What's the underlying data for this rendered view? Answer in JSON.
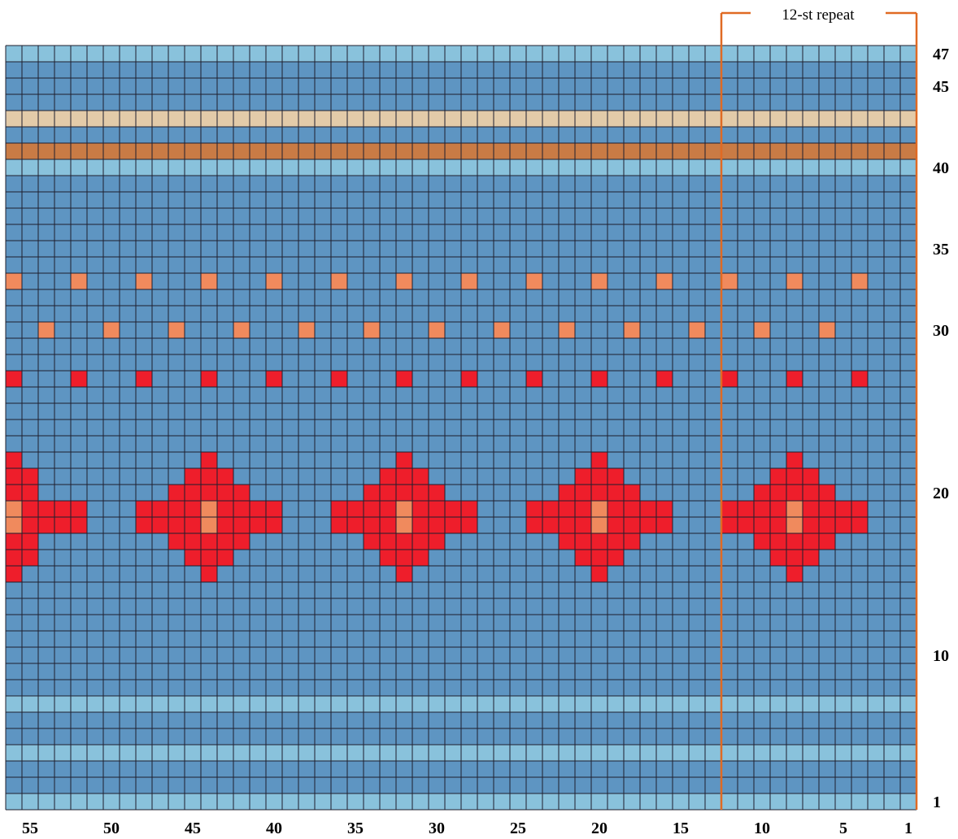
{
  "chart_data": {
    "type": "knitting-chart",
    "stitches": 56,
    "rows": 47,
    "repeat_label": "12-st repeat",
    "repeat_stitches": [
      1,
      12
    ],
    "palette": {
      "B": "#5e95c2",
      "L": "#89c2dc",
      "T": "#e3cba9",
      "O": "#c97b45",
      "P": "#f08a5d",
      "R": "#ee1e2b"
    },
    "grid_color": "#1f1f2e",
    "repeat_line_color": "#e06a23",
    "row_colors": {
      "1": "L",
      "2": "B",
      "3": "B",
      "4": "L",
      "5": "B",
      "6": "B",
      "7": "L",
      "40": "L",
      "41": "O",
      "42": "B",
      "43": "T",
      "44": "B",
      "45": "B",
      "46": "B",
      "47": "L"
    },
    "default_color": "B",
    "motif_cells": [
      {
        "row": 33,
        "stitches": [
          56,
          52,
          48,
          44,
          40,
          36,
          32,
          28,
          24,
          20,
          16,
          12,
          8,
          4
        ],
        "color": "P"
      },
      {
        "row": 30,
        "stitches": [
          54,
          50,
          46,
          42,
          38,
          34,
          30,
          26,
          22,
          18,
          14,
          10,
          6
        ],
        "color": "P"
      },
      {
        "row": 27,
        "stitches": [
          56,
          52,
          48,
          44,
          40,
          36,
          32,
          28,
          24,
          20,
          16,
          12,
          8,
          4
        ],
        "color": "R"
      },
      {
        "row": 22,
        "stitches": [
          56,
          44,
          32,
          20,
          8
        ],
        "color": "R"
      },
      {
        "row": 21,
        "stitches": [
          56,
          55,
          45,
          44,
          43,
          33,
          32,
          31,
          21,
          20,
          19,
          9,
          8,
          7
        ],
        "color": "R"
      },
      {
        "row": 20,
        "stitches": [
          56,
          55,
          46,
          45,
          44,
          43,
          42,
          34,
          33,
          32,
          31,
          30,
          22,
          21,
          20,
          19,
          18,
          10,
          9,
          8,
          7,
          6
        ],
        "color": "R"
      },
      {
        "row": 19,
        "stitches": [
          55,
          54,
          53,
          52,
          48,
          47,
          46,
          45,
          43,
          42,
          41,
          40,
          36,
          35,
          34,
          33,
          31,
          30,
          29,
          28,
          24,
          23,
          22,
          21,
          19,
          18,
          17,
          16,
          12,
          11,
          10,
          9,
          7,
          6,
          5,
          4
        ],
        "color": "R"
      },
      {
        "row": 19,
        "stitches": [
          56,
          44,
          32,
          20,
          8
        ],
        "color": "P"
      },
      {
        "row": 18,
        "stitches": [
          55,
          54,
          53,
          52,
          48,
          47,
          46,
          45,
          43,
          42,
          41,
          40,
          36,
          35,
          34,
          33,
          31,
          30,
          29,
          28,
          24,
          23,
          22,
          21,
          19,
          18,
          17,
          16,
          12,
          11,
          10,
          9,
          7,
          6,
          5,
          4
        ],
        "color": "R"
      },
      {
        "row": 18,
        "stitches": [
          56,
          44,
          32,
          20,
          8
        ],
        "color": "P"
      },
      {
        "row": 17,
        "stitches": [
          56,
          55,
          46,
          45,
          44,
          43,
          42,
          34,
          33,
          32,
          31,
          30,
          22,
          21,
          20,
          19,
          18,
          10,
          9,
          8,
          7,
          6
        ],
        "color": "R"
      },
      {
        "row": 16,
        "stitches": [
          56,
          55,
          45,
          44,
          43,
          33,
          32,
          31,
          21,
          20,
          19,
          9,
          8,
          7
        ],
        "color": "R"
      },
      {
        "row": 15,
        "stitches": [
          56,
          44,
          32,
          20,
          8
        ],
        "color": "R"
      }
    ],
    "row_labels": [
      "47",
      "45",
      "40",
      "35",
      "30",
      "20",
      "10",
      "1"
    ],
    "row_label_rows": [
      47,
      45,
      40,
      35,
      30,
      20,
      10,
      1
    ],
    "stitch_labels": [
      "55",
      "50",
      "45",
      "40",
      "35",
      "30",
      "25",
      "20",
      "15",
      "10",
      "5",
      "1"
    ],
    "stitch_label_cols": [
      55,
      50,
      45,
      40,
      35,
      30,
      25,
      20,
      15,
      10,
      5,
      1
    ]
  }
}
